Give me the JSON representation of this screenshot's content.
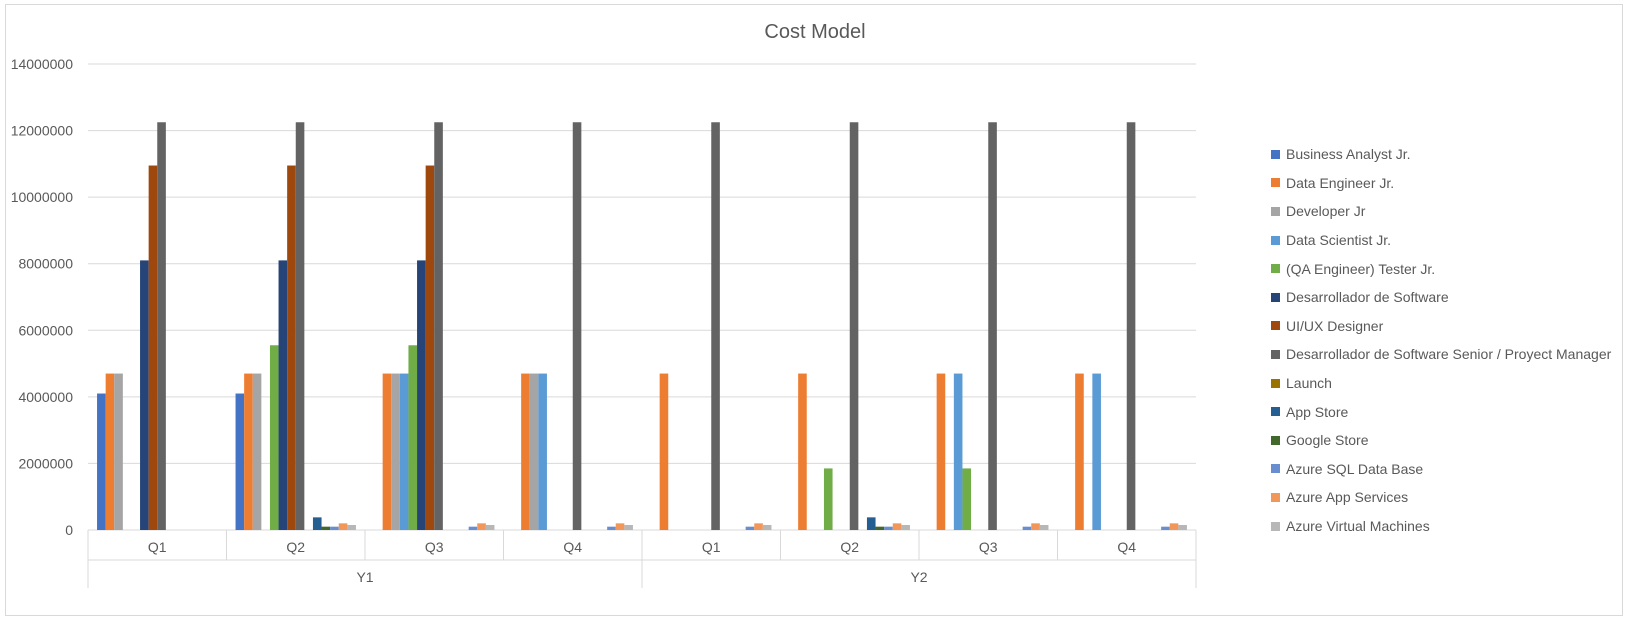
{
  "chart_data": {
    "type": "bar",
    "title": "Cost Model",
    "xlabel": "",
    "ylabel": "",
    "ylim": [
      0,
      14000000
    ],
    "yticks": [
      0,
      2000000,
      4000000,
      6000000,
      8000000,
      10000000,
      12000000,
      14000000
    ],
    "grid": true,
    "legend_position": "right",
    "groups": [
      {
        "label": "Y1",
        "categories": [
          "Q1",
          "Q2",
          "Q3",
          "Q4"
        ]
      },
      {
        "label": "Y2",
        "categories": [
          "Q1",
          "Q2",
          "Q3",
          "Q4"
        ]
      }
    ],
    "series": [
      {
        "name": "Business Analyst Jr.",
        "color": "#4472C4",
        "values": [
          4100000,
          4100000,
          0,
          0,
          0,
          0,
          0,
          0
        ]
      },
      {
        "name": "Data Engineer Jr.",
        "color": "#ED7D31",
        "values": [
          4700000,
          4700000,
          4700000,
          4700000,
          4700000,
          4700000,
          4700000,
          4700000
        ]
      },
      {
        "name": "Developer Jr",
        "color": "#A5A5A5",
        "values": [
          4700000,
          4700000,
          4700000,
          4700000,
          0,
          0,
          0,
          0
        ]
      },
      {
        "name": "Data Scientist Jr.",
        "color": "#5B9BD5",
        "values": [
          0,
          0,
          4700000,
          4700000,
          0,
          0,
          4700000,
          4700000
        ]
      },
      {
        "name": "(QA Engineer) Tester Jr.",
        "color": "#70AD47",
        "values": [
          0,
          5550000,
          5550000,
          0,
          0,
          1850000,
          1850000,
          0
        ]
      },
      {
        "name": "Desarrollador de Software",
        "color": "#264478",
        "values": [
          8100000,
          8100000,
          8100000,
          0,
          0,
          0,
          0,
          0
        ]
      },
      {
        "name": "UI/UX Designer",
        "color": "#9E480E",
        "values": [
          10950000,
          10950000,
          10950000,
          0,
          0,
          0,
          0,
          0
        ]
      },
      {
        "name": "Desarrollador de Software Senior / Proyect Manager",
        "color": "#636363",
        "values": [
          12250000,
          12250000,
          12250000,
          12250000,
          12250000,
          12250000,
          12250000,
          12250000
        ]
      },
      {
        "name": "Launch",
        "color": "#997300",
        "values": [
          0,
          0,
          0,
          0,
          0,
          0,
          0,
          0
        ]
      },
      {
        "name": "App Store",
        "color": "#255E91",
        "values": [
          0,
          380000,
          0,
          0,
          0,
          380000,
          0,
          0
        ]
      },
      {
        "name": "Google Store",
        "color": "#43682B",
        "values": [
          0,
          100000,
          0,
          0,
          0,
          100000,
          0,
          0
        ]
      },
      {
        "name": "Azure SQL Data Base",
        "color": "#698ED0",
        "values": [
          0,
          100000,
          100000,
          100000,
          100000,
          100000,
          100000,
          100000
        ]
      },
      {
        "name": "Azure App Services",
        "color": "#F1975A",
        "values": [
          0,
          200000,
          200000,
          200000,
          200000,
          200000,
          200000,
          200000
        ]
      },
      {
        "name": "Azure Virtual Machines",
        "color": "#B7B7B7",
        "values": [
          0,
          150000,
          150000,
          150000,
          150000,
          150000,
          150000,
          150000
        ]
      }
    ]
  }
}
